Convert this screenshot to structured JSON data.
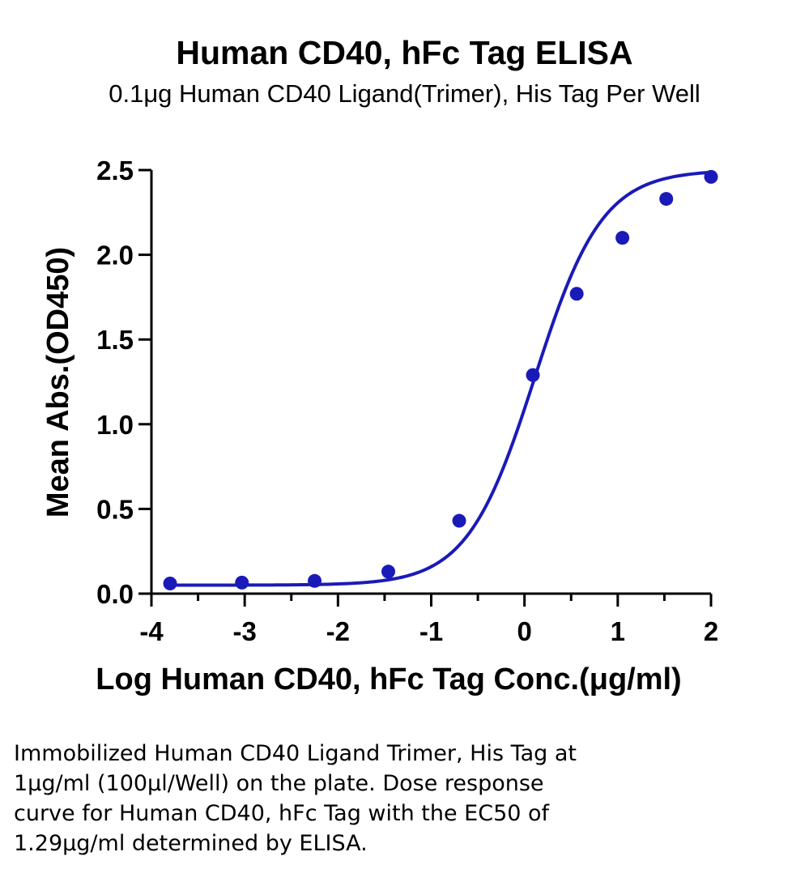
{
  "chart_data": {
    "type": "scatter",
    "title": "Human CD40, hFc Tag ELISA",
    "subtitle": "0.1μg Human CD40 Ligand(Trimer), His Tag Per Well",
    "xlabel": "Log Human CD40, hFc Tag Conc.(μg/ml)",
    "ylabel": "Mean Abs.(OD450)",
    "xlim": [
      -4,
      2
    ],
    "ylim": [
      0,
      2.5
    ],
    "x_ticks": [
      "-4",
      "-3",
      "-2",
      "-1",
      "0",
      "1",
      "2"
    ],
    "y_ticks": [
      "0.0",
      "0.5",
      "1.0",
      "1.5",
      "2.0",
      "2.5"
    ],
    "grid": false,
    "series": [
      {
        "x": [
          -3.8,
          -3.03,
          -2.25,
          -1.46,
          -0.7,
          0.09,
          0.56,
          1.05,
          1.52,
          2.0
        ],
        "y": [
          0.06,
          0.065,
          0.075,
          0.13,
          0.43,
          1.29,
          1.77,
          2.1,
          2.33,
          2.46
        ],
        "fit": "four-parameter logistic",
        "fit_params": {
          "bottom": 0.05,
          "top": 2.5,
          "log_ec50": 0.11,
          "hill": 1.2
        }
      }
    ],
    "color": "#1a1ab8"
  },
  "caption": [
    "Immobilized Human CD40 Ligand Trimer, His Tag at",
    "1μg/ml (100μl/Well) on the plate. Dose response",
    "curve for Human CD40, hFc Tag with the EC50 of",
    "1.29μg/ml determined by ELISA."
  ]
}
